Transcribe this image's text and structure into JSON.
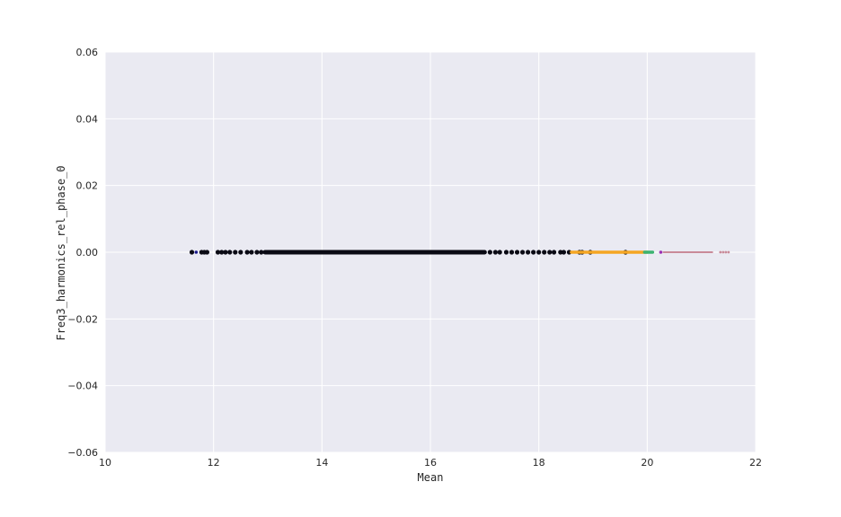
{
  "chart_data": {
    "type": "scatter",
    "title": "",
    "xlabel": "Mean",
    "ylabel": "Freq3_harmonics_rel_phase_0",
    "xlim": [
      10,
      22
    ],
    "ylim": [
      -0.06,
      0.06
    ],
    "x_ticks": [
      "10",
      "12",
      "14",
      "16",
      "18",
      "20",
      "22"
    ],
    "y_ticks": [
      "0.06",
      "0.04",
      "0.02",
      "0.00",
      "−0.02",
      "−0.04",
      "−0.06"
    ],
    "grid": true,
    "legend": "none",
    "colors": {
      "plot_background": "#eaeaf2",
      "grid": "#ffffff",
      "black": "#0a0a14",
      "orange": "#f5a623",
      "green": "#3cb371",
      "purple": "#9b30b5",
      "pink": "#c98a99",
      "blue": "#1a1a8c"
    },
    "series": [
      {
        "color": "black",
        "points": [
          [
            11.6,
            0
          ],
          [
            11.78,
            0
          ],
          [
            11.83,
            0
          ],
          [
            11.88,
            0
          ],
          [
            12.08,
            0
          ],
          [
            12.15,
            0
          ],
          [
            12.22,
            0
          ],
          [
            12.3,
            0
          ],
          [
            12.4,
            0
          ],
          [
            12.5,
            0
          ],
          [
            12.62,
            0
          ],
          [
            12.7,
            0
          ],
          [
            12.8,
            0
          ],
          [
            12.88,
            0
          ],
          [
            17.1,
            0
          ],
          [
            17.2,
            0
          ],
          [
            17.28,
            0
          ],
          [
            17.4,
            0
          ],
          [
            17.5,
            0
          ],
          [
            17.6,
            0
          ],
          [
            17.7,
            0
          ],
          [
            17.8,
            0
          ],
          [
            17.9,
            0
          ],
          [
            18.0,
            0
          ],
          [
            18.1,
            0
          ],
          [
            18.2,
            0
          ],
          [
            18.28,
            0
          ],
          [
            18.4,
            0
          ],
          [
            18.46,
            0
          ],
          [
            18.56,
            0
          ],
          [
            18.75,
            0
          ],
          [
            18.8,
            0
          ],
          [
            18.95,
            0
          ],
          [
            19.6,
            0
          ]
        ],
        "dense_ranges": [
          [
            12.95,
            17.0
          ]
        ]
      },
      {
        "color": "orange",
        "dense_ranges": [
          [
            18.6,
            20.0
          ]
        ]
      },
      {
        "color": "green",
        "dense_ranges": [
          [
            19.95,
            20.1
          ]
        ]
      },
      {
        "color": "purple",
        "points": [
          [
            20.25,
            0
          ]
        ]
      },
      {
        "color": "pink",
        "dense_ranges": [
          [
            20.3,
            21.2
          ]
        ],
        "points": [
          [
            21.35,
            0
          ],
          [
            21.4,
            0
          ],
          [
            21.45,
            0
          ],
          [
            21.5,
            0
          ]
        ]
      },
      {
        "color": "blue",
        "points": [
          [
            11.68,
            0
          ]
        ]
      }
    ]
  }
}
